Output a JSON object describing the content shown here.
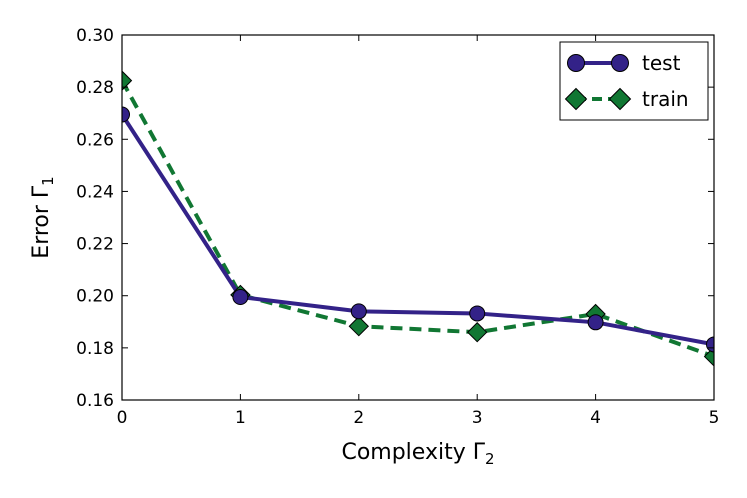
{
  "chart_data": {
    "type": "line",
    "x": [
      0,
      1,
      2,
      3,
      4,
      5
    ],
    "series": [
      {
        "name": "test",
        "values": [
          0.2695,
          0.1995,
          0.194,
          0.1932,
          0.1898,
          0.1813
        ],
        "color": "#332288",
        "linestyle": "solid",
        "marker": "circle"
      },
      {
        "name": "train",
        "values": [
          0.2825,
          0.2003,
          0.1883,
          0.186,
          0.193,
          0.1767
        ],
        "color": "#117733",
        "linestyle": "dashed",
        "marker": "diamond"
      }
    ],
    "xlabel": "Complexity Γ",
    "xlabel_sub": "2",
    "ylabel": "Error Γ",
    "ylabel_sub": "1",
    "xlim": [
      0,
      5
    ],
    "ylim": [
      0.16,
      0.3
    ],
    "xticks": [
      "0",
      "1",
      "2",
      "3",
      "4",
      "5"
    ],
    "yticks": [
      "0.16",
      "0.18",
      "0.20",
      "0.22",
      "0.24",
      "0.26",
      "0.28",
      "0.30"
    ],
    "grid": false,
    "legend_position": "top-right"
  }
}
